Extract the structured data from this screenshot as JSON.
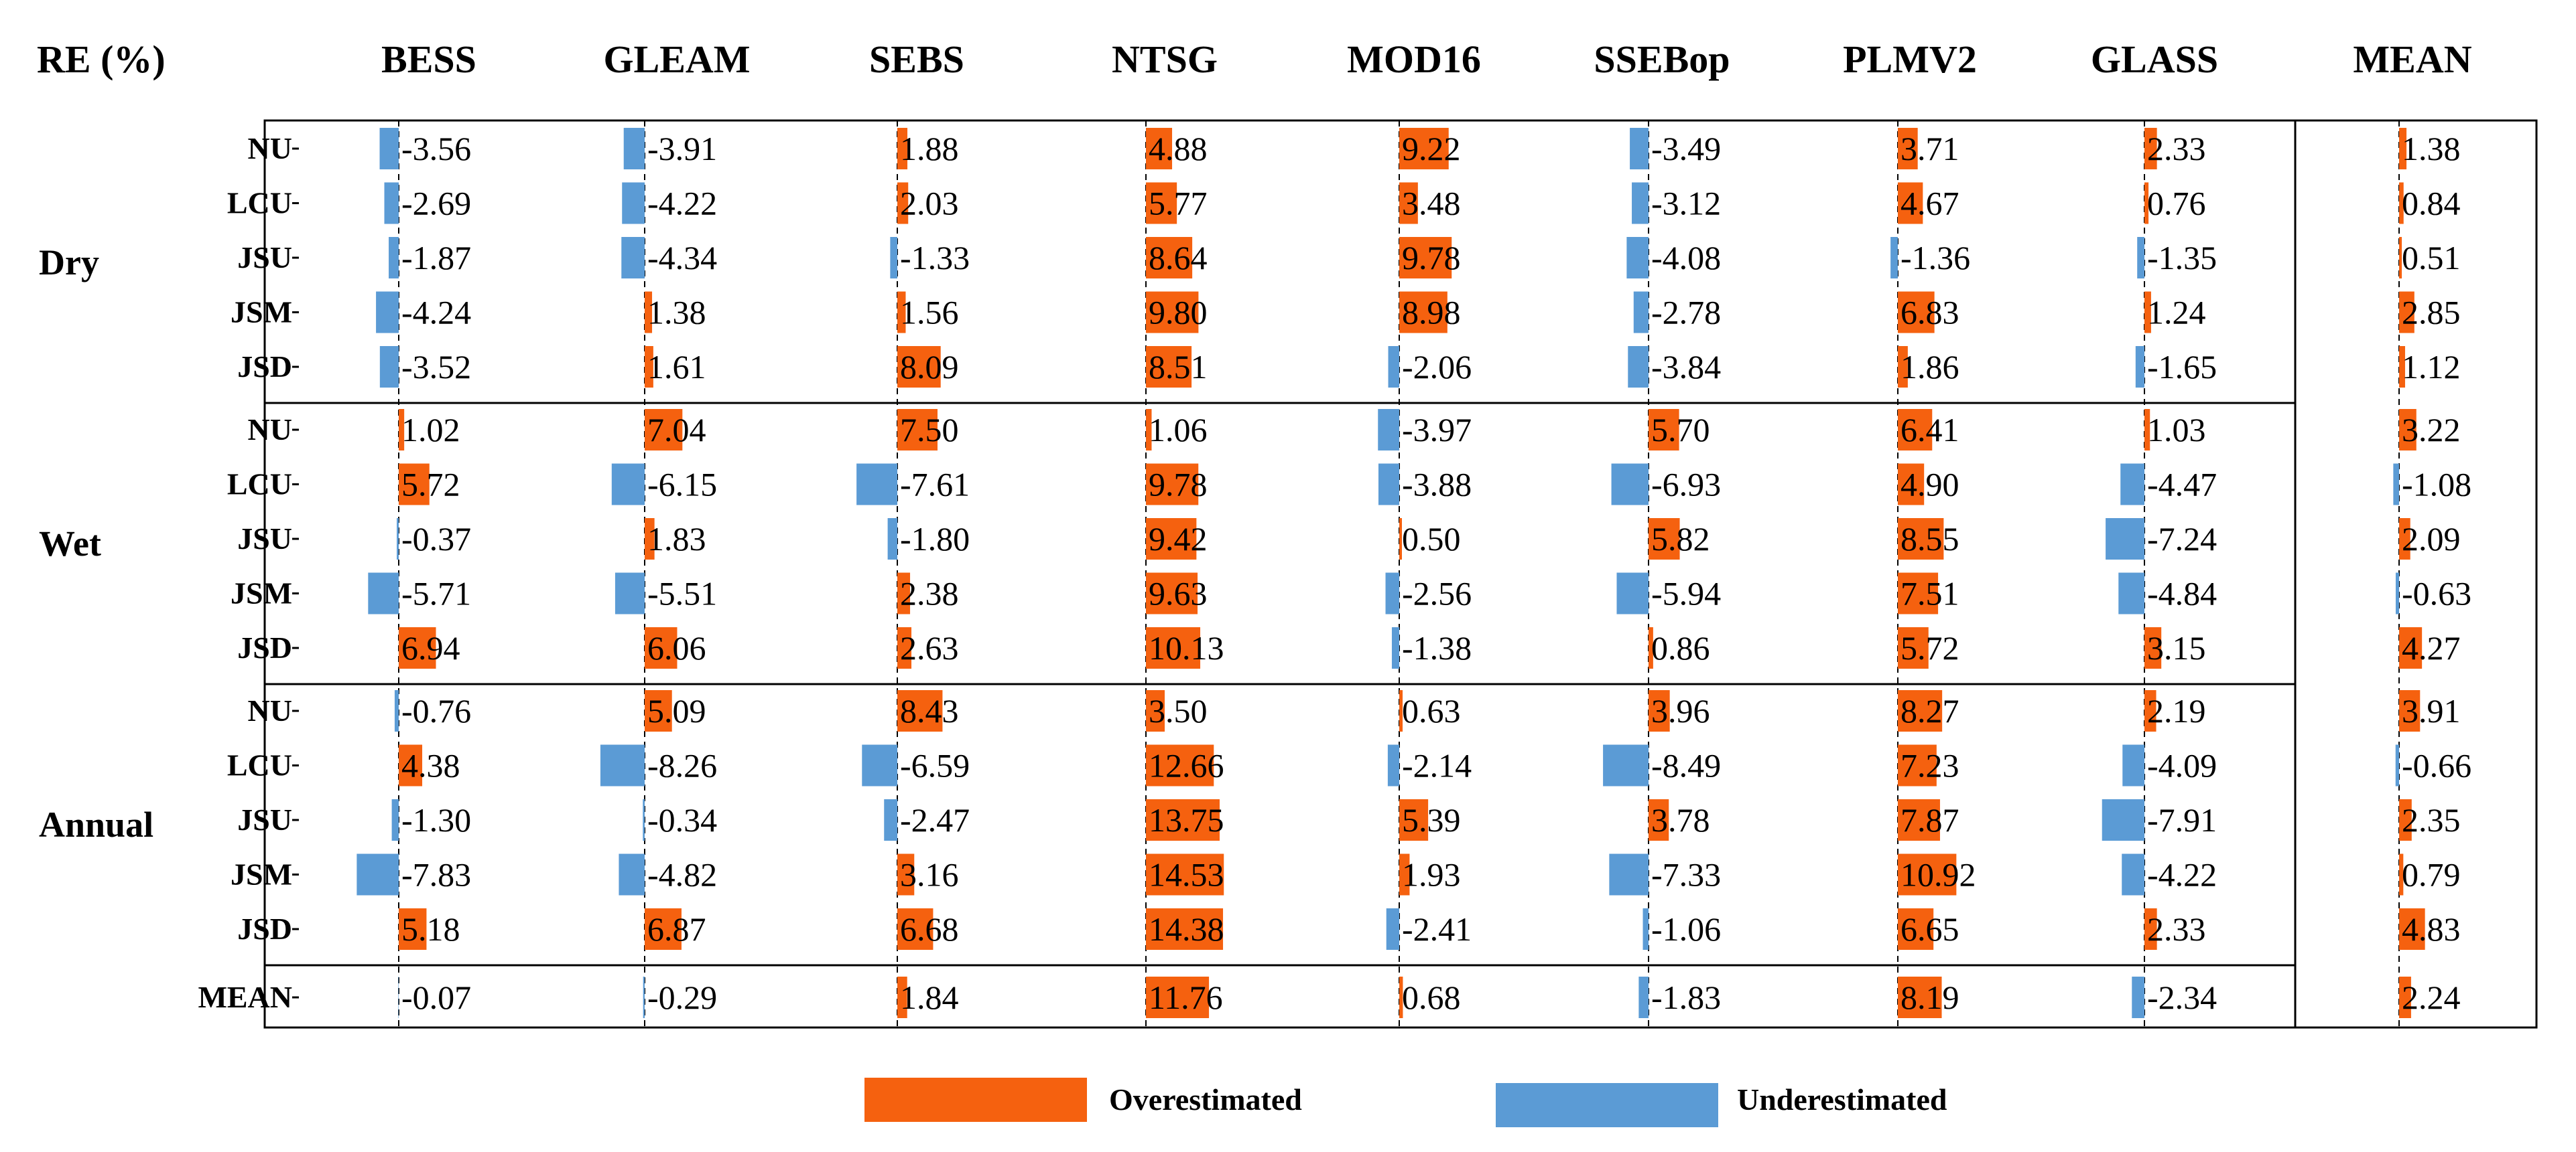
{
  "chart_data": {
    "type": "bar",
    "title": "RE (%)",
    "columns": [
      "BESS",
      "GLEAM",
      "SEBS",
      "NTSG",
      "MOD16",
      "SSEBop",
      "PLMV2",
      "GLASS",
      "MEAN"
    ],
    "groups": [
      {
        "name": "Dry",
        "rows": [
          "NU",
          "LCU",
          "JSU",
          "JSM",
          "JSD"
        ]
      },
      {
        "name": "Wet",
        "rows": [
          "NU",
          "LCU",
          "JSU",
          "JSM",
          "JSD"
        ]
      },
      {
        "name": "Annual",
        "rows": [
          "NU",
          "LCU",
          "JSU",
          "JSM",
          "JSD"
        ]
      },
      {
        "name": "",
        "rows": [
          "MEAN"
        ]
      }
    ],
    "values": [
      [
        -3.56,
        -3.91,
        1.88,
        4.88,
        9.22,
        -3.49,
        3.71,
        2.33,
        1.38
      ],
      [
        -2.69,
        -4.22,
        2.03,
        5.77,
        3.48,
        -3.12,
        4.67,
        0.76,
        0.84
      ],
      [
        -1.87,
        -4.34,
        -1.33,
        8.64,
        9.78,
        -4.08,
        -1.36,
        -1.35,
        0.51
      ],
      [
        -4.24,
        1.38,
        1.56,
        9.8,
        8.98,
        -2.78,
        6.83,
        1.24,
        2.85
      ],
      [
        -3.52,
        1.61,
        8.09,
        8.51,
        -2.06,
        -3.84,
        1.86,
        -1.65,
        1.12
      ],
      [
        1.02,
        7.04,
        7.5,
        1.06,
        -3.97,
        5.7,
        6.41,
        1.03,
        3.22
      ],
      [
        5.72,
        -6.15,
        -7.61,
        9.78,
        -3.88,
        -6.93,
        4.9,
        -4.47,
        -1.08
      ],
      [
        -0.37,
        1.83,
        -1.8,
        9.42,
        0.5,
        5.82,
        8.55,
        -7.24,
        2.09
      ],
      [
        -5.71,
        -5.51,
        2.38,
        9.63,
        -2.56,
        -5.94,
        7.51,
        -4.84,
        -0.63
      ],
      [
        6.94,
        6.06,
        2.63,
        10.13,
        -1.38,
        0.86,
        5.72,
        3.15,
        4.27
      ],
      [
        -0.76,
        5.09,
        8.43,
        3.5,
        0.63,
        3.96,
        8.27,
        2.19,
        3.91
      ],
      [
        4.38,
        -8.26,
        -6.59,
        12.66,
        -2.14,
        -8.49,
        7.23,
        -4.09,
        -0.66
      ],
      [
        -1.3,
        -0.34,
        -2.47,
        13.75,
        5.39,
        3.78,
        7.87,
        -7.91,
        2.35
      ],
      [
        -7.83,
        -4.82,
        3.16,
        14.53,
        1.93,
        -7.33,
        10.92,
        -4.22,
        0.79
      ],
      [
        5.18,
        6.87,
        6.68,
        14.38,
        -2.41,
        -1.06,
        6.65,
        2.33,
        4.83
      ],
      [
        -0.07,
        -0.29,
        1.84,
        11.76,
        0.68,
        -1.83,
        8.19,
        -2.34,
        2.24
      ]
    ],
    "value_labels": [
      [
        "-3.56",
        "-3.91",
        "1.88",
        "4.88",
        "9.22",
        "-3.49",
        "3.71",
        "2.33",
        "1.38"
      ],
      [
        "-2.69",
        "-4.22",
        "2.03",
        "5.77",
        "3.48",
        "-3.12",
        "4.67",
        "0.76",
        "0.84"
      ],
      [
        "-1.87",
        "-4.34",
        "-1.33",
        "8.64",
        "9.78",
        "-4.08",
        "-1.36",
        "-1.35",
        "0.51"
      ],
      [
        "-4.24",
        "1.38",
        "1.56",
        "9.80",
        "8.98",
        "-2.78",
        "6.83",
        "1.24",
        "2.85"
      ],
      [
        "-3.52",
        "1.61",
        "8.09",
        "8.51",
        "-2.06",
        "-3.84",
        "1.86",
        "-1.65",
        "1.12"
      ],
      [
        "1.02",
        "7.04",
        "7.50",
        "1.06",
        "-3.97",
        "5.70",
        "6.41",
        "1.03",
        "3.22"
      ],
      [
        "5.72",
        "-6.15",
        "-7.61",
        "9.78",
        "-3.88",
        "-6.93",
        "4.90",
        "-4.47",
        "-1.08"
      ],
      [
        "-0.37",
        "1.83",
        "-1.80",
        "9.42",
        "0.50",
        "5.82",
        "8.55",
        "-7.24",
        "2.09"
      ],
      [
        "-5.71",
        "-5.51",
        "2.38",
        "9.63",
        "-2.56",
        "-5.94",
        "7.51",
        "-4.84",
        "-0.63"
      ],
      [
        "6.94",
        "6.06",
        "2.63",
        "10.13",
        "-1.38",
        "0.86",
        "5.72",
        "3.15",
        "4.27"
      ],
      [
        "-0.76",
        "5.09",
        "8.43",
        "3.50",
        "0.63",
        "3.96",
        "8.27",
        "2.19",
        "3.91"
      ],
      [
        "4.38",
        "-8.26",
        "-6.59",
        "12.66",
        "-2.14",
        "-8.49",
        "7.23",
        "-4.09",
        "-0.66"
      ],
      [
        "-1.30",
        "-0.34",
        "-2.47",
        "13.75",
        "5.39",
        "3.78",
        "7.87",
        "-7.91",
        "2.35"
      ],
      [
        "-7.83",
        "-4.82",
        "3.16",
        "14.53",
        "1.93",
        "-7.33",
        "10.92",
        "-4.22",
        "0.79"
      ],
      [
        "5.18",
        "6.87",
        "6.68",
        "14.38",
        "-2.41",
        "-1.06",
        "6.65",
        "2.33",
        "4.83"
      ],
      [
        "-0.07",
        "-0.29",
        "1.84",
        "11.76",
        "0.68",
        "-1.83",
        "8.19",
        "-2.34",
        "2.24"
      ]
    ],
    "legend": [
      {
        "label": "Overestimated",
        "color": "#f5610f"
      },
      {
        "label": "Underestimated",
        "color": "#5b9bd5"
      }
    ],
    "colors": {
      "positive": "#f5610f",
      "negative": "#5b9bd5"
    }
  }
}
